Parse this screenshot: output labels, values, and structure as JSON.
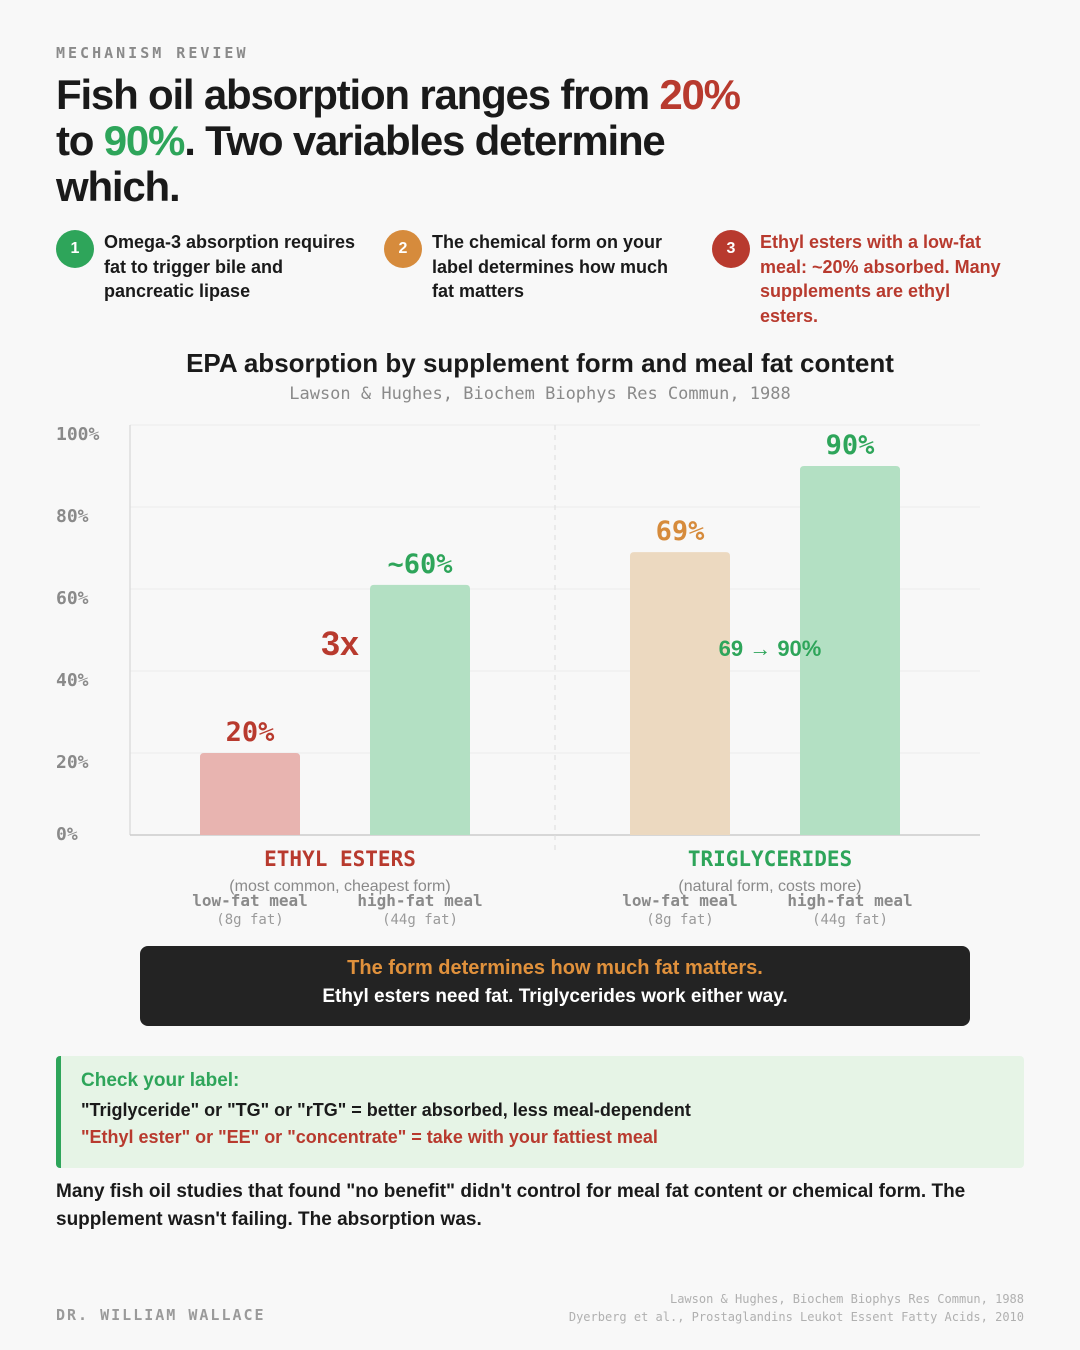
{
  "kicker": "MECHANISM REVIEW",
  "headline": {
    "part1": "Fish oil absorption ranges from ",
    "low": "20%",
    "part2": " to ",
    "high": "90%",
    "part3": ". Two variables determine which."
  },
  "points": [
    {
      "num": "1",
      "text": "Omega-3 absorption requires fat to trigger bile and pancreatic lipase",
      "color": "#2ea55a"
    },
    {
      "num": "2",
      "text": "The chemical form on your label determines how much fat matters",
      "color": "#d68b3c"
    },
    {
      "num": "3",
      "text": "Ethyl esters with a low-fat meal: ~20% absorbed. Many supplements are ethyl esters.",
      "color": "#b83a2e"
    }
  ],
  "chart_data": {
    "type": "bar",
    "title": "EPA absorption by supplement form and meal fat content",
    "subtitle": "Lawson & Hughes, Biochem Biophys Res Commun, 1988",
    "ylim": [
      0,
      100
    ],
    "yticks": [
      "0%",
      "20%",
      "40%",
      "60%",
      "80%",
      "100%"
    ],
    "groups": [
      {
        "name": "ETHYL ESTERS",
        "note": "(most common, cheapest form)",
        "color": "#b83a2e",
        "comparison": "3x",
        "bars": [
          {
            "category": "low-fat meal",
            "sub": "(8g fat)",
            "value": 20,
            "label": "20%",
            "fill": "#e8b4b0",
            "text": "#b83a2e"
          },
          {
            "category": "high-fat meal",
            "sub": "(44g fat)",
            "value": 61,
            "label": "~60%",
            "fill": "#b3e0c3",
            "text": "#2ea55a"
          }
        ]
      },
      {
        "name": "TRIGLYCERIDES",
        "note": "(natural form, costs more)",
        "color": "#2ea55a",
        "comparison": "69 → 90%",
        "bars": [
          {
            "category": "low-fat meal",
            "sub": "(8g fat)",
            "value": 69,
            "label": "69%",
            "fill": "#ecd9c0",
            "text": "#d68b3c"
          },
          {
            "category": "high-fat meal",
            "sub": "(44g fat)",
            "value": 90,
            "label": "90%",
            "fill": "#b3e0c3",
            "text": "#2ea55a"
          }
        ]
      }
    ]
  },
  "callout": {
    "line1": "The form determines how much fat matters.",
    "line2": "Ethyl esters need fat. Triglycerides work either way."
  },
  "label_check": {
    "title": "Check your label:",
    "good": "\"Triglyceride\" or \"TG\" or \"rTG\" = better absorbed, less meal-dependent",
    "bad": "\"Ethyl ester\" or \"EE\" or \"concentrate\" = take with your fattiest meal"
  },
  "closing": "Many fish oil studies that found \"no benefit\" didn't control for meal fat content or chemical form. The supplement wasn't failing. The absorption was.",
  "author": "DR. WILLIAM WALLACE",
  "references": [
    "Lawson & Hughes, Biochem Biophys Res Commun, 1988",
    "Dyerberg et al., Prostaglandins Leukot Essent Fatty Acids, 2010"
  ]
}
